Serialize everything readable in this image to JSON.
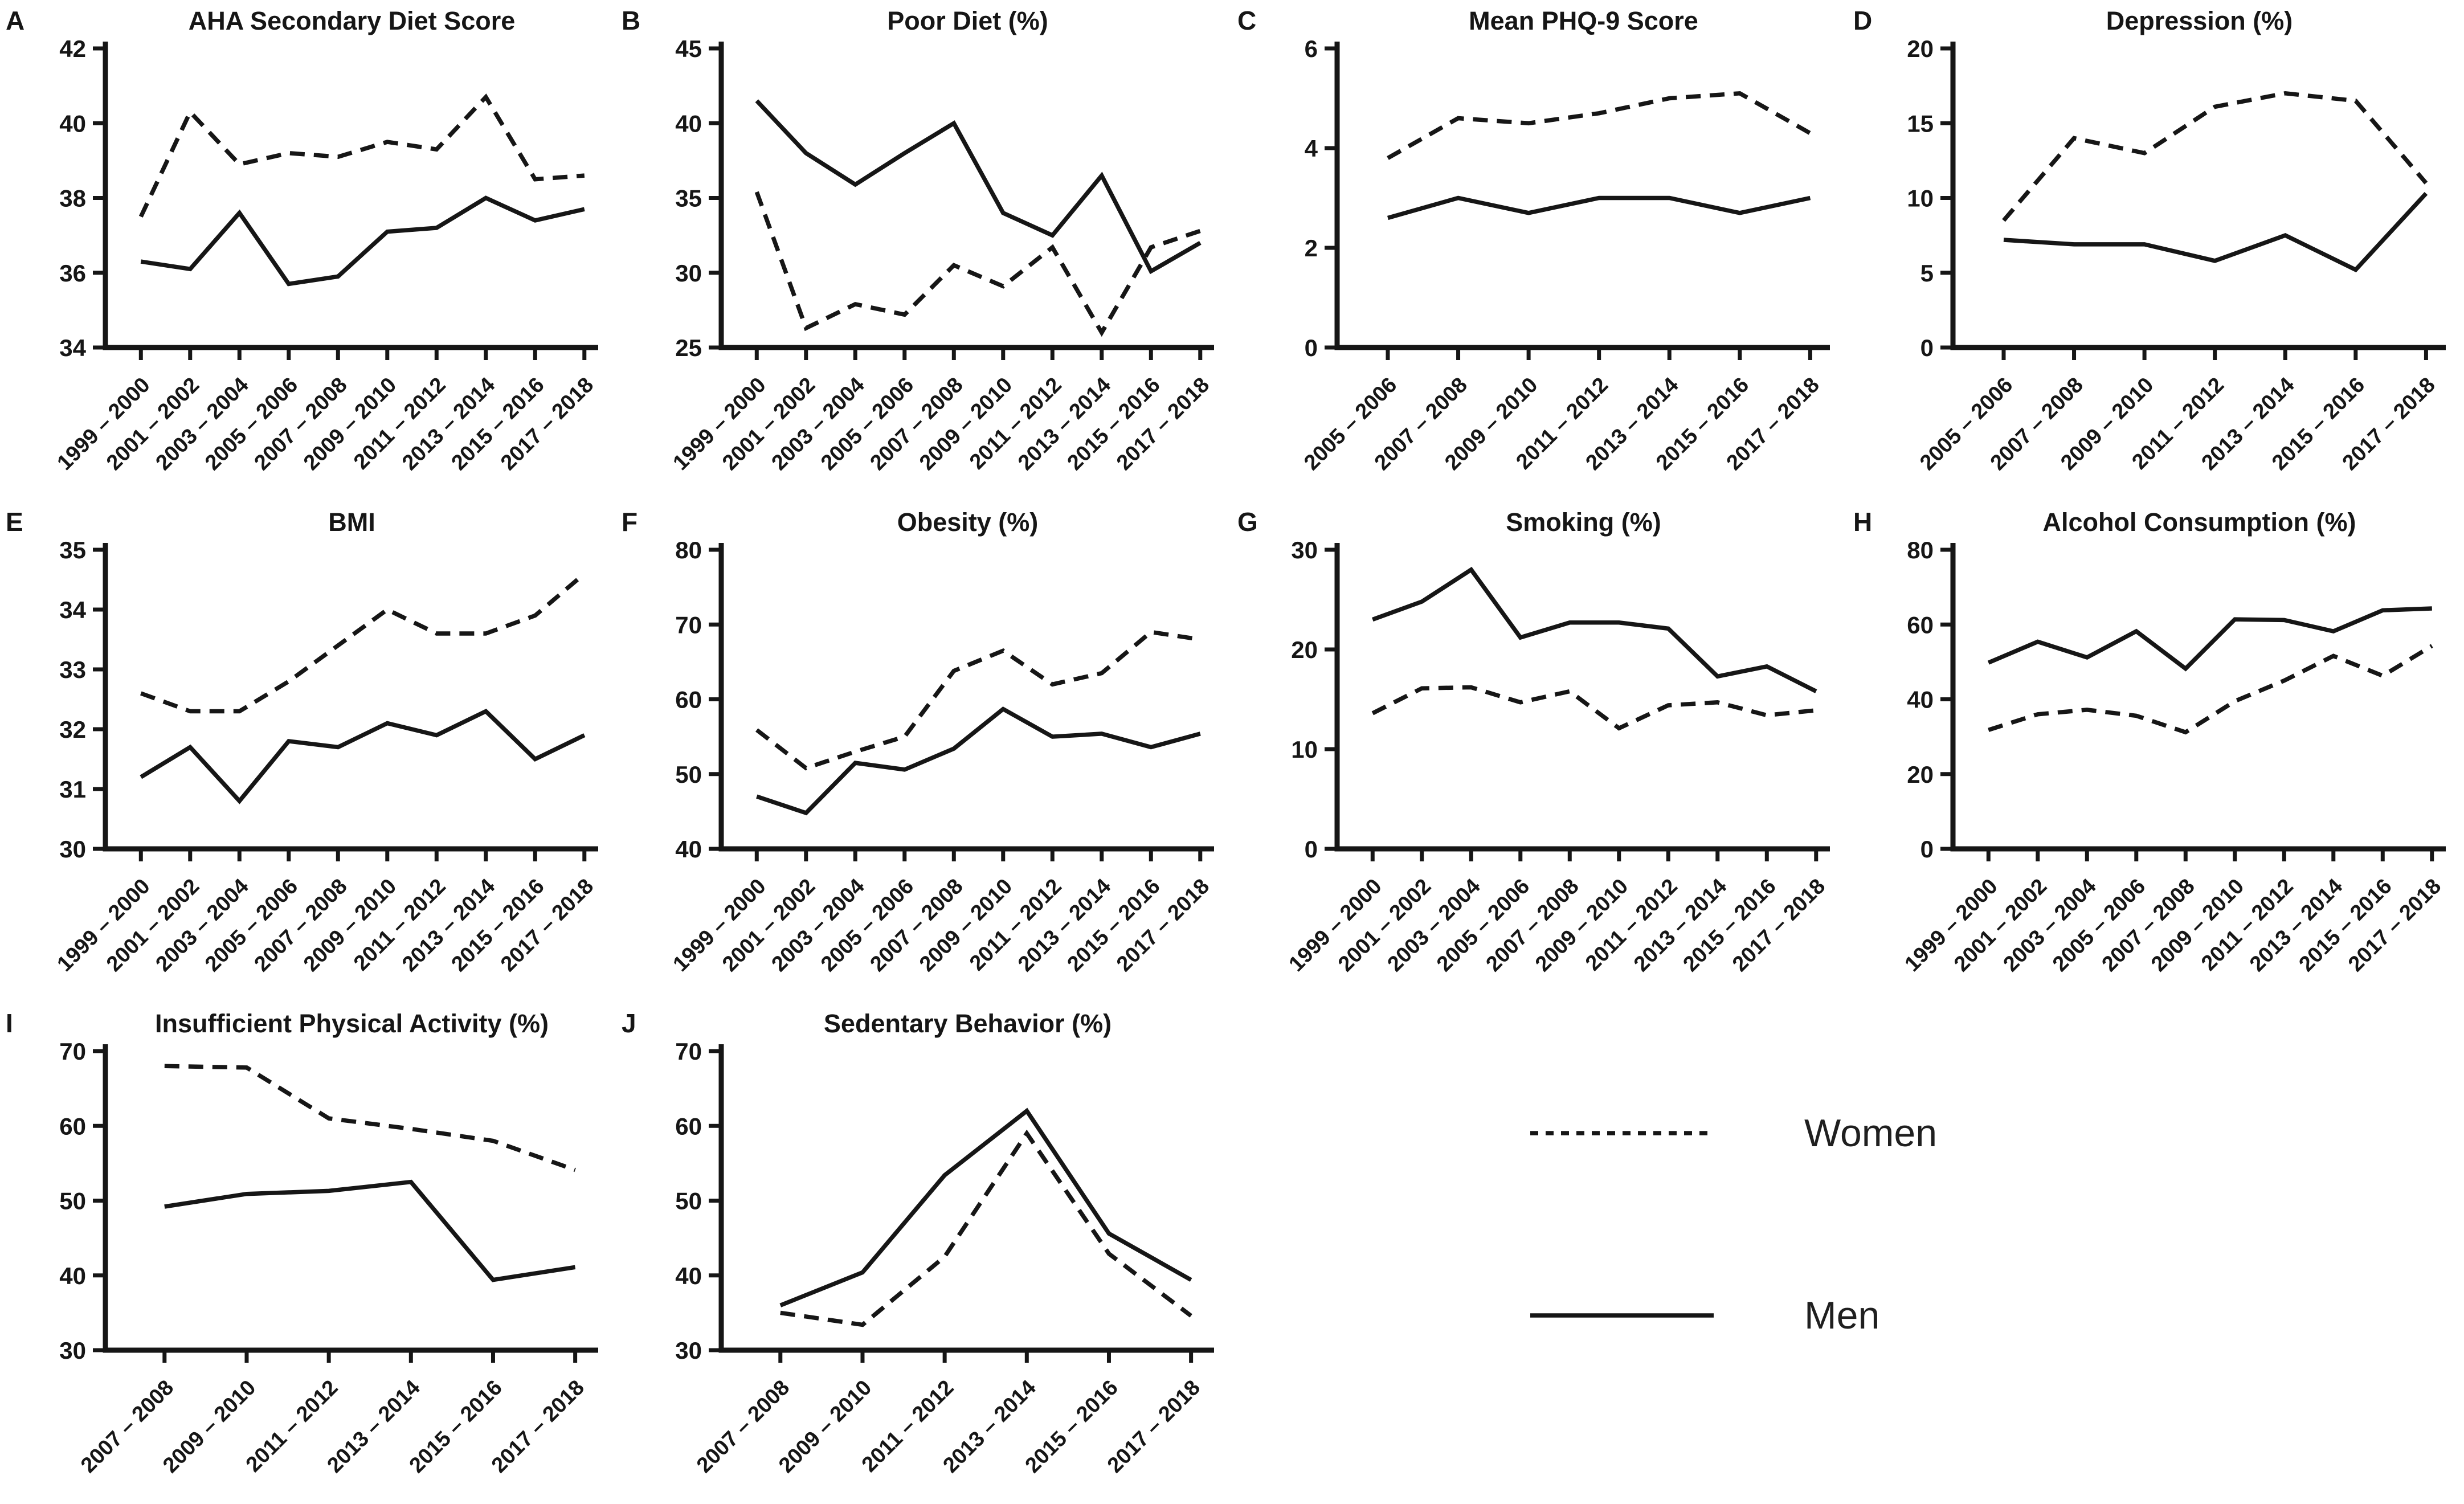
{
  "figure": {
    "line_color": "#161616",
    "background": "#ffffff",
    "legend": {
      "position": "bottom-right",
      "entries": [
        {
          "label": "Women",
          "style": "dashed"
        },
        {
          "label": "Men",
          "style": "solid"
        }
      ]
    }
  },
  "chart_data": [
    {
      "panel": "A",
      "type": "line",
      "title": "AHA Secondary Diet Score",
      "xlabel": "",
      "ylabel": "",
      "ylim": [
        34,
        42
      ],
      "yticks": [
        34,
        36,
        38,
        40,
        42
      ],
      "grid": false,
      "legend_position": "none",
      "categories": [
        "1999 – 2000",
        "2001 – 2002",
        "2003 – 2004",
        "2005 – 2006",
        "2007 – 2008",
        "2009 – 2010",
        "2011 – 2012",
        "2013 – 2014",
        "2015 – 2016",
        "2017 – 2018"
      ],
      "series": [
        {
          "name": "Women",
          "style": "dashed",
          "values": [
            37.5,
            40.3,
            38.9,
            39.2,
            39.1,
            39.5,
            39.3,
            40.7,
            38.5,
            38.6
          ]
        },
        {
          "name": "Men",
          "style": "solid",
          "values": [
            36.3,
            36.1,
            37.6,
            35.7,
            35.9,
            37.1,
            37.2,
            38.0,
            37.4,
            37.7
          ]
        }
      ]
    },
    {
      "panel": "B",
      "type": "line",
      "title": "Poor Diet (%)",
      "xlabel": "",
      "ylabel": "",
      "ylim": [
        25,
        45
      ],
      "yticks": [
        25,
        30,
        35,
        40,
        45
      ],
      "grid": false,
      "legend_position": "none",
      "categories": [
        "1999 – 2000",
        "2001 – 2002",
        "2003 – 2004",
        "2005 – 2006",
        "2007 – 2008",
        "2009 – 2010",
        "2011 – 2012",
        "2013 – 2014",
        "2015 – 2016",
        "2017 – 2018"
      ],
      "series": [
        {
          "name": "Women",
          "style": "dashed",
          "values": [
            35.4,
            26.3,
            27.9,
            27.2,
            30.5,
            29.1,
            31.7,
            26.0,
            31.7,
            32.8
          ]
        },
        {
          "name": "Men",
          "style": "solid",
          "values": [
            41.5,
            38.0,
            35.9,
            38.0,
            40.0,
            34.0,
            32.5,
            36.5,
            30.1,
            32.0
          ]
        }
      ]
    },
    {
      "panel": "C",
      "type": "line",
      "title": "Mean PHQ-9 Score",
      "xlabel": "",
      "ylabel": "",
      "ylim": [
        0,
        6
      ],
      "yticks": [
        0,
        2,
        4,
        6
      ],
      "grid": false,
      "legend_position": "none",
      "categories": [
        "2005 – 2006",
        "2007 – 2008",
        "2009 – 2010",
        "2011 – 2012",
        "2013 – 2014",
        "2015 – 2016",
        "2017 – 2018"
      ],
      "series": [
        {
          "name": "Women",
          "style": "dashed",
          "values": [
            3.8,
            4.6,
            4.5,
            4.7,
            5.0,
            5.1,
            4.3
          ]
        },
        {
          "name": "Men",
          "style": "solid",
          "values": [
            2.6,
            3.0,
            2.7,
            3.0,
            3.0,
            2.7,
            3.0
          ]
        }
      ]
    },
    {
      "panel": "D",
      "type": "line",
      "title": "Depression (%)",
      "xlabel": "",
      "ylabel": "",
      "ylim": [
        0,
        20
      ],
      "yticks": [
        0,
        5,
        10,
        15,
        20
      ],
      "grid": false,
      "legend_position": "none",
      "categories": [
        "2005 – 2006",
        "2007 – 2008",
        "2009 – 2010",
        "2011 – 2012",
        "2013 – 2014",
        "2015 – 2016",
        "2017 – 2018"
      ],
      "series": [
        {
          "name": "Women",
          "style": "dashed",
          "values": [
            8.5,
            14.0,
            13.0,
            16.1,
            17.0,
            16.5,
            11.0
          ]
        },
        {
          "name": "Men",
          "style": "solid",
          "values": [
            7.2,
            6.9,
            6.9,
            5.8,
            7.5,
            5.2,
            10.3
          ]
        }
      ]
    },
    {
      "panel": "E",
      "type": "line",
      "title": "BMI",
      "xlabel": "",
      "ylabel": "",
      "ylim": [
        30,
        35
      ],
      "yticks": [
        30,
        31,
        32,
        33,
        34,
        35
      ],
      "grid": false,
      "legend_position": "none",
      "categories": [
        "1999 – 2000",
        "2001 – 2002",
        "2003 – 2004",
        "2005 – 2006",
        "2007 – 2008",
        "2009 – 2010",
        "2011 – 2012",
        "2013 – 2014",
        "2015 – 2016",
        "2017 – 2018"
      ],
      "series": [
        {
          "name": "Women",
          "style": "dashed",
          "values": [
            32.6,
            32.3,
            32.3,
            32.8,
            33.4,
            34.0,
            33.6,
            33.6,
            33.9,
            34.6
          ]
        },
        {
          "name": "Men",
          "style": "solid",
          "values": [
            31.2,
            31.7,
            30.8,
            31.8,
            31.7,
            32.1,
            31.9,
            32.3,
            31.5,
            31.9
          ]
        }
      ]
    },
    {
      "panel": "F",
      "type": "line",
      "title": "Obesity (%)",
      "xlabel": "",
      "ylabel": "",
      "ylim": [
        40,
        80
      ],
      "yticks": [
        40,
        50,
        60,
        70,
        80
      ],
      "grid": false,
      "legend_position": "none",
      "categories": [
        "1999 – 2000",
        "2001 – 2002",
        "2003 – 2004",
        "2005 – 2006",
        "2007 – 2008",
        "2009 – 2010",
        "2011 – 2012",
        "2013 – 2014",
        "2015 – 2016",
        "2017 – 2018"
      ],
      "series": [
        {
          "name": "Women",
          "style": "dashed",
          "values": [
            55.9,
            50.8,
            53.0,
            55.0,
            63.8,
            66.5,
            62.0,
            63.5,
            69.0,
            68.0
          ]
        },
        {
          "name": "Men",
          "style": "solid",
          "values": [
            47.0,
            44.8,
            51.5,
            50.6,
            53.4,
            58.7,
            55.0,
            55.4,
            53.6,
            55.4
          ]
        }
      ]
    },
    {
      "panel": "G",
      "type": "line",
      "title": "Smoking (%)",
      "xlabel": "",
      "ylabel": "",
      "ylim": [
        0,
        30
      ],
      "yticks": [
        0,
        10,
        20,
        30
      ],
      "grid": false,
      "legend_position": "none",
      "categories": [
        "1999 – 2000",
        "2001 – 2002",
        "2003 – 2004",
        "2005 – 2006",
        "2007 – 2008",
        "2009 – 2010",
        "2011 – 2012",
        "2013 – 2014",
        "2015 – 2016",
        "2017 – 2018"
      ],
      "series": [
        {
          "name": "Women",
          "style": "dashed",
          "values": [
            13.6,
            16.1,
            16.2,
            14.7,
            15.8,
            12.1,
            14.4,
            14.7,
            13.4,
            13.9
          ]
        },
        {
          "name": "Men",
          "style": "solid",
          "values": [
            23.0,
            24.8,
            28.0,
            21.2,
            22.7,
            22.7,
            22.1,
            17.3,
            18.3,
            15.8
          ]
        }
      ]
    },
    {
      "panel": "H",
      "type": "line",
      "title": "Alcohol Consumption (%)",
      "xlabel": "",
      "ylabel": "",
      "ylim": [
        0,
        80
      ],
      "yticks": [
        0,
        20,
        40,
        60,
        80
      ],
      "grid": false,
      "legend_position": "none",
      "categories": [
        "1999 – 2000",
        "2001 – 2002",
        "2003 – 2004",
        "2005 – 2006",
        "2007 – 2008",
        "2009 – 2010",
        "2011 – 2012",
        "2013 – 2014",
        "2015 – 2016",
        "2017 – 2018"
      ],
      "series": [
        {
          "name": "Women",
          "style": "dashed",
          "values": [
            31.8,
            36.0,
            37.2,
            35.6,
            31.2,
            39.5,
            45.0,
            51.6,
            46.3,
            54.3
          ]
        },
        {
          "name": "Men",
          "style": "solid",
          "values": [
            49.8,
            55.4,
            51.2,
            58.2,
            48.2,
            61.4,
            61.2,
            58.2,
            63.8,
            64.3
          ]
        }
      ]
    },
    {
      "panel": "I",
      "type": "line",
      "title": "Insufficient Physical Activity (%)",
      "xlabel": "",
      "ylabel": "",
      "ylim": [
        30,
        70
      ],
      "yticks": [
        30,
        40,
        50,
        60,
        70
      ],
      "grid": false,
      "legend_position": "none",
      "categories": [
        "2007 – 2008",
        "2009 – 2010",
        "2011 – 2012",
        "2013 – 2014",
        "2015 – 2016",
        "2017 – 2018"
      ],
      "series": [
        {
          "name": "Women",
          "style": "dashed",
          "values": [
            68.0,
            67.8,
            61.0,
            59.6,
            58.0,
            54.1
          ]
        },
        {
          "name": "Men",
          "style": "solid",
          "values": [
            49.2,
            50.9,
            51.3,
            52.5,
            39.4,
            41.1
          ]
        }
      ]
    },
    {
      "panel": "J",
      "type": "line",
      "title": "Sedentary Behavior (%)",
      "xlabel": "",
      "ylabel": "",
      "ylim": [
        30,
        70
      ],
      "yticks": [
        30,
        40,
        50,
        60,
        70
      ],
      "grid": false,
      "legend_position": "none",
      "categories": [
        "2007 – 2008",
        "2009 – 2010",
        "2011 – 2012",
        "2013 – 2014",
        "2015 – 2016",
        "2017 – 2018"
      ],
      "series": [
        {
          "name": "Women",
          "style": "dashed",
          "values": [
            35.0,
            33.4,
            42.5,
            59.0,
            42.9,
            34.6
          ]
        },
        {
          "name": "Men",
          "style": "solid",
          "values": [
            36.0,
            40.4,
            53.4,
            62.0,
            45.6,
            39.4
          ]
        }
      ]
    }
  ]
}
